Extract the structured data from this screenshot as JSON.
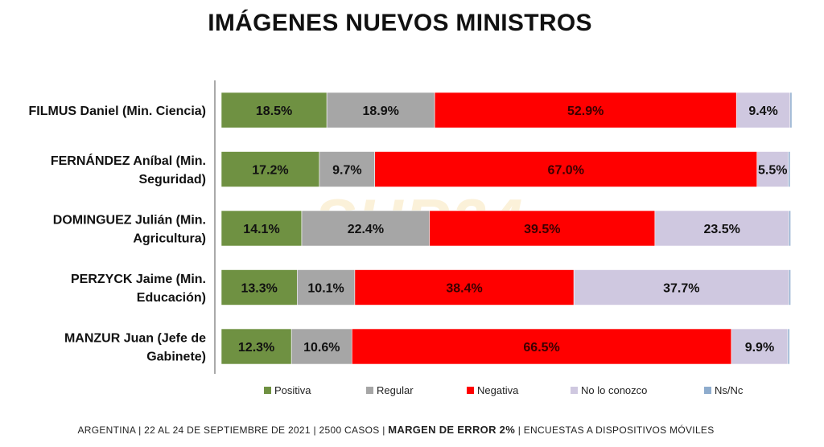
{
  "watermark": "SUR24",
  "chart_data": {
    "type": "bar",
    "orientation": "horizontal",
    "stacked": true,
    "title": "IMÁGENES NUEVOS MINISTROS",
    "categories": [
      "FILMUS Daniel (Min. Ciencia)",
      "FERNÁNDEZ Aníbal (Min. Seguridad)",
      "DOMINGUEZ Julián (Min. Agricultura)",
      "PERZYCK Jaime (Min. Educación)",
      "MANZUR Juan (Jefe de Gabinete)"
    ],
    "category_lines": [
      [
        "FILMUS Daniel (Min. Ciencia)"
      ],
      [
        "FERNÁNDEZ Aníbal (Min.",
        "Seguridad)"
      ],
      [
        "DOMINGUEZ Julián (Min.",
        "Agricultura)"
      ],
      [
        "PERZYCK Jaime (Min.",
        "Educación)"
      ],
      [
        "MANZUR Juan (Jefe de",
        "Gabinete)"
      ]
    ],
    "series": [
      {
        "name": "Positiva",
        "color": "#6f9142",
        "values": [
          18.5,
          17.2,
          14.1,
          13.3,
          12.3
        ],
        "labels": [
          "18.5%",
          "17.2%",
          "14.1%",
          "13.3%",
          "12.3%"
        ]
      },
      {
        "name": "Regular",
        "color": "#a6a6a6",
        "values": [
          18.9,
          9.7,
          22.4,
          10.1,
          10.6
        ],
        "labels": [
          "18.9%",
          "9.7%",
          "22.4%",
          "10.1%",
          "10.6%"
        ]
      },
      {
        "name": "Negativa",
        "color": "#ff0000",
        "values": [
          52.9,
          67.0,
          39.5,
          38.4,
          66.5
        ],
        "labels": [
          "52.9%",
          "67.0%",
          "39.5%",
          "38.4%",
          "66.5%"
        ]
      },
      {
        "name": "No lo conozco",
        "color": "#cfc8e0",
        "values": [
          9.4,
          5.5,
          23.5,
          37.7,
          9.9
        ],
        "labels": [
          "9.4%",
          "5.5%",
          "23.5%",
          "37.7%",
          "9.9%"
        ]
      },
      {
        "name": "Ns/Nc",
        "color": "#8eaccd",
        "values": [
          0.3,
          0.3,
          0.3,
          0.3,
          0.3
        ],
        "labels": [
          "",
          "",
          "",
          "",
          ""
        ]
      }
    ],
    "xlim": [
      0,
      100
    ],
    "legend": "bottom"
  },
  "footer": {
    "prefix": "ARGENTINA | 22 AL 24 DE SEPTIEMBRE DE 2021 | 2500 CASOS | ",
    "emphasis": "MARGEN DE ERROR 2%",
    "suffix": " | ENCUESTAS A DISPOSITIVOS MÓVILES"
  }
}
